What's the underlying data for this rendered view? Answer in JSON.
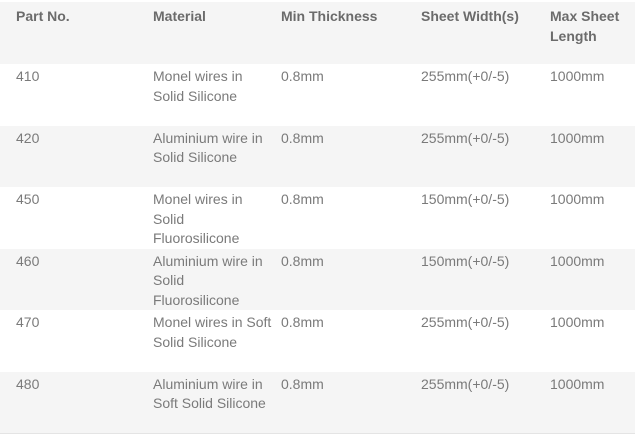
{
  "table": {
    "headers": [
      "Part No.",
      "Material",
      "Min Thickness",
      "Sheet Width(s)",
      "Max Sheet Length"
    ],
    "rows": [
      [
        "410",
        "Monel wires in Solid Silicone",
        "0.8mm",
        "255mm(+0/-5)",
        "1000mm"
      ],
      [
        "420",
        "Aluminium wire in Solid Silicone",
        "0.8mm",
        "255mm(+0/-5)",
        "1000mm"
      ],
      [
        "450",
        "Monel wires in Solid Fluorosilicone",
        "0.8mm",
        "150mm(+0/-5)",
        "1000mm"
      ],
      [
        "460",
        "Aluminium wire in Solid Fluorosilicone",
        "0.8mm",
        "150mm(+0/-5)",
        "1000mm"
      ],
      [
        "470",
        "Monel wires in Soft Solid Silicone",
        "0.8mm",
        "255mm(+0/-5)",
        "1000mm"
      ],
      [
        "480",
        "Aluminium wire in Soft Solid Silicone",
        "0.8mm",
        "255mm(+0/-5)",
        "1000mm"
      ]
    ]
  },
  "colors": {
    "header_bg": "#f5f5f5",
    "stripe_bg": "#f5f5f5",
    "text": "#7a7a7a",
    "header_text": "#6b6b6b"
  }
}
